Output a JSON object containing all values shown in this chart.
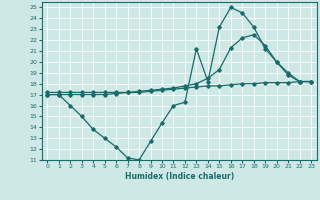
{
  "xlabel": "Humidex (Indice chaleur)",
  "xlim": [
    -0.5,
    23.5
  ],
  "ylim": [
    11,
    25.5
  ],
  "yticks": [
    11,
    12,
    13,
    14,
    15,
    16,
    17,
    18,
    19,
    20,
    21,
    22,
    23,
    24,
    25
  ],
  "xticks": [
    0,
    1,
    2,
    3,
    4,
    5,
    6,
    7,
    8,
    9,
    10,
    11,
    12,
    13,
    14,
    15,
    16,
    17,
    18,
    19,
    20,
    21,
    22,
    23
  ],
  "bg_color": "#cde8e5",
  "line_color": "#1a6b6b",
  "grid_color": "#ffffff",
  "line1_x": [
    0,
    1,
    2,
    3,
    4,
    5,
    6,
    7,
    8,
    9,
    10,
    11,
    12,
    13,
    14,
    15,
    16,
    17,
    18,
    19,
    20,
    21,
    22,
    23
  ],
  "line1_y": [
    17.0,
    17.0,
    16.0,
    15.0,
    13.8,
    13.0,
    12.2,
    11.2,
    11.0,
    12.7,
    14.4,
    16.0,
    16.3,
    21.2,
    18.2,
    23.2,
    25.0,
    24.5,
    23.2,
    21.2,
    20.0,
    19.0,
    18.2,
    18.2
  ],
  "line2_x": [
    0,
    1,
    2,
    3,
    4,
    5,
    6,
    7,
    8,
    9,
    10,
    11,
    12,
    13,
    14,
    15,
    16,
    17,
    18,
    19,
    20,
    21,
    22,
    23
  ],
  "line2_y": [
    17.2,
    17.2,
    17.2,
    17.2,
    17.2,
    17.2,
    17.2,
    17.2,
    17.2,
    17.3,
    17.4,
    17.5,
    17.6,
    17.7,
    17.8,
    17.8,
    17.9,
    18.0,
    18.0,
    18.1,
    18.1,
    18.1,
    18.2,
    18.2
  ],
  "line3_x": [
    0,
    1,
    2,
    3,
    4,
    5,
    6,
    7,
    8,
    9,
    10,
    11,
    12,
    13,
    14,
    15,
    16,
    17,
    18,
    19,
    20,
    21,
    22,
    23
  ],
  "line3_y": [
    17.0,
    17.0,
    17.0,
    17.0,
    17.0,
    17.0,
    17.1,
    17.2,
    17.3,
    17.4,
    17.5,
    17.6,
    17.8,
    18.0,
    18.5,
    19.3,
    21.3,
    22.2,
    22.5,
    21.5,
    20.0,
    18.8,
    18.2,
    18.2
  ]
}
